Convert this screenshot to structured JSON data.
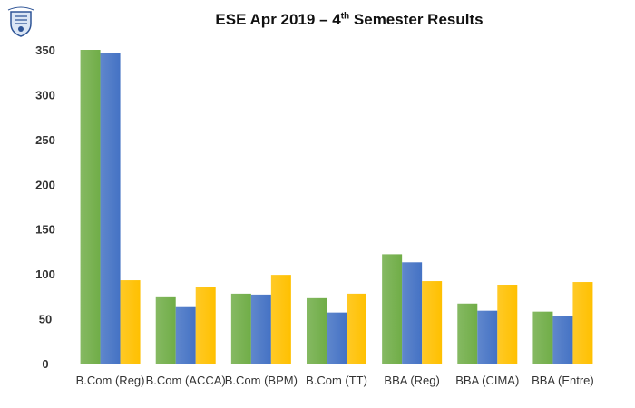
{
  "logo": {
    "icon": "college-crest-icon"
  },
  "title": {
    "prefix": "ESE Apr 2019 – 4",
    "superscript": "th",
    "suffix": " Semester Results"
  },
  "colors": {
    "series1": "#70AD47",
    "series2": "#4472C4",
    "series3": "#FFC000"
  },
  "chart_data": {
    "type": "bar",
    "title": "ESE Apr 2019 – 4th Semester Results",
    "xlabel": "",
    "ylabel": "",
    "ylim": [
      0,
      350
    ],
    "yticks": [
      0,
      50,
      100,
      150,
      200,
      250,
      300,
      350
    ],
    "grid": false,
    "categories": [
      "B.Com (Reg)",
      "B.Com (ACCA)",
      "B.Com (BPM)",
      "B.Com (TT)",
      "BBA (Reg)",
      "BBA (CIMA)",
      "BBA (Entre)"
    ],
    "series": [
      {
        "values": [
          350,
          74,
          78,
          73,
          122,
          67,
          58
        ]
      },
      {
        "values": [
          346,
          63,
          77,
          57,
          113,
          59,
          53
        ]
      },
      {
        "values": [
          93,
          85,
          99,
          78,
          92,
          88,
          91
        ]
      }
    ]
  }
}
